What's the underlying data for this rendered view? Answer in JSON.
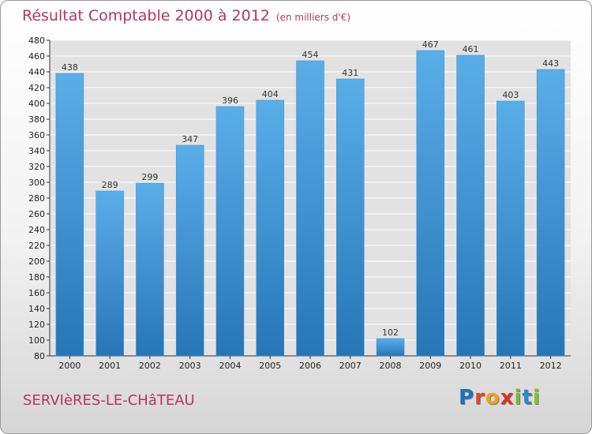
{
  "header": {
    "title": "Résultat Comptable 2000 à 2012",
    "subtitle": "(en milliers d'€)"
  },
  "footer": {
    "city": "SERVIèRES-LE-CHâTEAU",
    "logo_letters": [
      "P",
      "r",
      "o",
      "x",
      "i",
      "t",
      "i"
    ]
  },
  "colors": {
    "title": "#b5365f",
    "bar_light": "#5aaee8",
    "bar_dark": "#2676b8",
    "grid": "#ffffff",
    "plot_bg": "#e2e2e2"
  },
  "chart_data": {
    "type": "bar",
    "title": "Résultat Comptable 2000 à 2012",
    "subtitle": "(en milliers d'€)",
    "xlabel": "",
    "ylabel": "",
    "categories": [
      "2000",
      "2001",
      "2002",
      "2003",
      "2004",
      "2005",
      "2006",
      "2007",
      "2008",
      "2009",
      "2010",
      "2011",
      "2012"
    ],
    "values": [
      438,
      289,
      299,
      347,
      396,
      404,
      454,
      431,
      102,
      467,
      461,
      403,
      443
    ],
    "ylim": [
      80,
      480
    ],
    "yticks": [
      80,
      100,
      120,
      140,
      160,
      180,
      200,
      220,
      240,
      260,
      280,
      300,
      320,
      340,
      360,
      380,
      400,
      420,
      440,
      460,
      480
    ],
    "grid": true
  }
}
